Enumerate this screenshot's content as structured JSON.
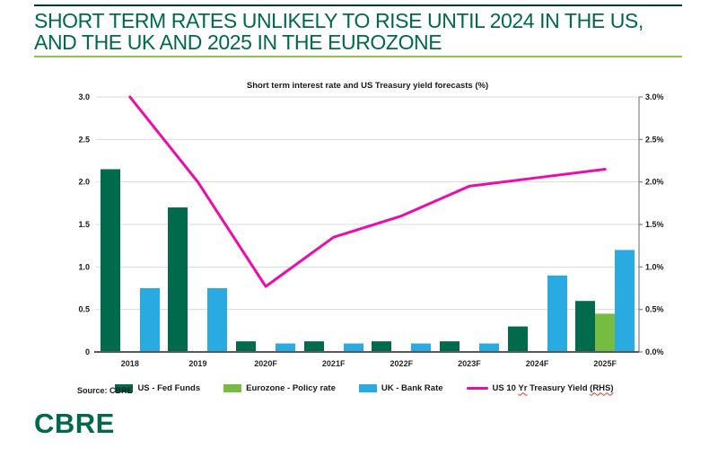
{
  "header": {
    "title_line1": "SHORT TERM RATES UNLIKELY TO RISE UNTIL 2024 IN THE US,",
    "title_line2": "AND THE UK AND 2025 IN THE EUROZONE",
    "title_color": "#00694B",
    "underline_color": "#8CC63F",
    "top_rule_color": "#003F2D"
  },
  "chart_data": {
    "type": "combo-bar-line",
    "title": "Short term interest rate and US Treasury yield forecasts (%)",
    "categories": [
      "2018",
      "2019",
      "2020F",
      "2021F",
      "2022F",
      "2023F",
      "2024F",
      "2025F"
    ],
    "bar_series": [
      {
        "name": "US - Fed Funds",
        "color": "#006A4D",
        "values": [
          2.15,
          1.7,
          0.125,
          0.125,
          0.125,
          0.125,
          0.3,
          0.6
        ]
      },
      {
        "name": "Eurozone - Policy rate",
        "color": "#76BC43",
        "values": [
          0,
          0,
          0,
          0,
          0,
          0,
          0,
          0.45
        ]
      },
      {
        "name": "UK - Bank Rate",
        "color": "#29ABE2",
        "values": [
          0.75,
          0.75,
          0.1,
          0.1,
          0.1,
          0.1,
          0.9,
          1.2
        ]
      }
    ],
    "line_series": {
      "name": "US 10 Yr Treasury Yield (RHS)",
      "color": "#ED0CA8",
      "values": [
        3.0,
        2.0,
        0.77,
        1.35,
        1.6,
        1.95,
        2.05,
        2.15
      ]
    },
    "left_axis": {
      "ticks": [
        "3.0",
        "2.5",
        "2.0",
        "1.5",
        "1.0",
        "0.5",
        "0"
      ],
      "min": 0,
      "max": 3.0
    },
    "right_axis": {
      "ticks": [
        "3.0%",
        "2.5%",
        "2.0%",
        "1.5%",
        "1.0%",
        "0.5%",
        "0.0%"
      ],
      "min": 0,
      "max": 3.0
    },
    "grid": true,
    "gridline_color": "#D9D9D9",
    "axis_color": "#595959",
    "right_axis_line_color": "#808080",
    "legend_position": "bottom"
  },
  "legend": {
    "misspell_underline_color": "#E03131",
    "items": [
      {
        "id": "us-fed-funds",
        "type": "bar",
        "color": "#006A4D",
        "parts": [
          {
            "text": "US - Fed Funds"
          }
        ]
      },
      {
        "id": "eurozone-policy-rate",
        "type": "bar",
        "color": "#76BC43",
        "parts": [
          {
            "text": "Eurozone - Policy rate"
          }
        ]
      },
      {
        "id": "uk-bank-rate",
        "type": "bar",
        "color": "#29ABE2",
        "parts": [
          {
            "text": "UK - Bank Rate"
          }
        ]
      },
      {
        "id": "us-10yr-treasury-yield",
        "type": "line",
        "color": "#ED0CA8",
        "parts": [
          {
            "text": "US 10 "
          },
          {
            "text": "Yr",
            "misspelled": true
          },
          {
            "text": " Treasury Yield "
          },
          {
            "text": "(RHS)",
            "misspelled": true
          }
        ]
      }
    ]
  },
  "footer": {
    "source": "Source: CBRE",
    "logo": "CBRE"
  }
}
